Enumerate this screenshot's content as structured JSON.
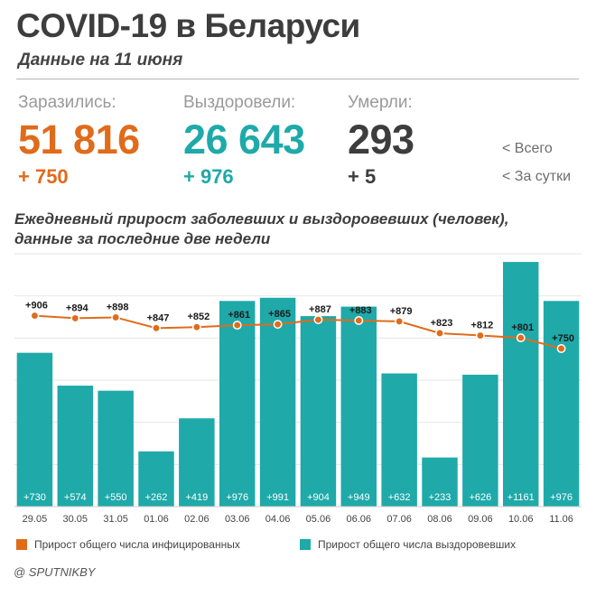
{
  "header": {
    "title": "COVID-19 в Беларуси",
    "subtitle": "Данные на 11 июня"
  },
  "stats": {
    "infected": {
      "label": "Заразились:",
      "total": "51 816",
      "delta": "+ 750",
      "color": "#e06b1b"
    },
    "recovered": {
      "label": "Выздоровели:",
      "total": "26 643",
      "delta": "+ 976",
      "color": "#1fa9a9"
    },
    "died": {
      "label": "Умерли:",
      "total": "293",
      "delta": "+ 5",
      "color": "#3d3d3d"
    }
  },
  "key": {
    "total": "<  Всего",
    "daily": "<  За сутки"
  },
  "chart_title_lines": [
    "Ежедневный прирост заболевших и выздоровевших (человек),",
    "данные за последние две недели"
  ],
  "chart_data": {
    "type": "bar",
    "categories": [
      "29.05",
      "30.05",
      "31.05",
      "01.06",
      "02.06",
      "03.06",
      "04.06",
      "05.06",
      "06.06",
      "07.06",
      "08.06",
      "09.06",
      "10.06",
      "11.06"
    ],
    "series": [
      {
        "name": "Прирост общего числа выздоровевших",
        "type": "bar",
        "color": "#1fa9a9",
        "values": [
          730,
          574,
          550,
          262,
          419,
          976,
          991,
          904,
          949,
          632,
          233,
          626,
          1161,
          976
        ],
        "labels": [
          "+730",
          "+574",
          "+550",
          "+262",
          "+419",
          "+976",
          "+991",
          "+904",
          "+949",
          "+632",
          "+233",
          "+626",
          "+1161",
          "+976"
        ]
      },
      {
        "name": "Прирост общего числа инфицированных",
        "type": "line",
        "color": "#e06b1b",
        "values": [
          906,
          894,
          898,
          847,
          852,
          861,
          865,
          887,
          883,
          879,
          823,
          812,
          801,
          750
        ],
        "labels": [
          "+906",
          "+894",
          "+898",
          "+847",
          "+852",
          "+861",
          "+865",
          "+887",
          "+883",
          "+879",
          "+823",
          "+812",
          "+801",
          "+750"
        ]
      }
    ],
    "ylim": [
      0,
      1200
    ],
    "grid": true,
    "legend": "bottom"
  },
  "source": "@ SPUTNIKBY"
}
